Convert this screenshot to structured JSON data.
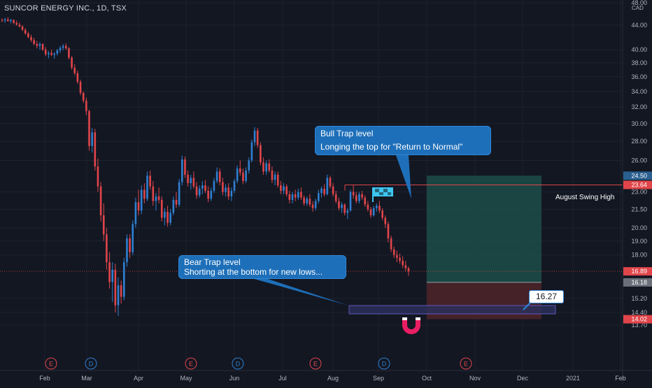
{
  "header": {
    "title": "SUNCOR ENERGY INC., 1D, TSX",
    "currency": "CAD"
  },
  "colors": {
    "background": "#131722",
    "up": "#2f7fd1",
    "down": "#e0454a",
    "grid": "#1e222d",
    "axis_text": "#b2b5be",
    "callout": "#1e6fb9",
    "profit_zone": "#1d4d49",
    "loss_zone": "#4a2329",
    "pink": "#e91e63",
    "flag": "#3dc6f0"
  },
  "annotations": {
    "bull_trap_title": "Bull Trap level",
    "bull_trap_text": "Longing the top for \"Return to Normal\"",
    "bear_trap_title": "Bear Trap level",
    "bear_trap_text": "Shorting at the bottom for new lows...",
    "swing_label": "August Swing High",
    "price_note": "16.27",
    "flag_icon": "flag-icon",
    "magnet_icon": "magnet-icon"
  },
  "chart_data": {
    "type": "candlestick",
    "title": "SUNCOR ENERGY INC., 1D, TSX",
    "x_labels": [
      "Feb",
      "Mar",
      "Apr",
      "May",
      "Jun",
      "Jul",
      "Aug",
      "Sep",
      "Oct",
      "Nov",
      "Dec",
      "2021",
      "Feb"
    ],
    "y_ticks": [
      13.7,
      14.4,
      15.2,
      18.0,
      19.0,
      20.0,
      21.5,
      23.0,
      26.0,
      28.0,
      30.0,
      32.0,
      34.0,
      36.0,
      38.0,
      40.0,
      44.0,
      48.0
    ],
    "y_tick_labels": [
      "13.70",
      "14.40",
      "15.20",
      "18.00",
      "19.00",
      "20.00",
      "21.50",
      "23.00",
      "26.00",
      "28.00",
      "30.00",
      "32.00",
      "34.00",
      "36.00",
      "38.00",
      "40.00",
      "44.00",
      "48.00"
    ],
    "y_scale": "log",
    "ylim": [
      13.5,
      48.0
    ],
    "price_markers": [
      {
        "label": "24.50",
        "value": 24.5,
        "color": "#2a5f8f"
      },
      {
        "label": "23.64",
        "value": 23.64,
        "color": "#e0454a"
      },
      {
        "label": "16.89",
        "value": 16.89,
        "color": "#e0454a"
      },
      {
        "label": "16.18",
        "value": 16.18,
        "color": "#6b6f7a"
      },
      {
        "label": "14.02",
        "value": 14.02,
        "color": "#e0454a"
      }
    ],
    "events": [
      {
        "type": "E",
        "x_day": 62
      },
      {
        "type": "D",
        "x_day": 88
      },
      {
        "type": "E",
        "x_day": 188
      },
      {
        "type": "D",
        "x_day": 216
      },
      {
        "type": "E",
        "x_day": 293
      },
      {
        "type": "D",
        "x_day": 339
      },
      {
        "type": "E",
        "x_day": 425
      }
    ],
    "swing_high": 23.64,
    "long_position": {
      "entry": 16.18,
      "target": 24.5,
      "stop": 14.02
    },
    "candles": [
      [
        44.9,
        45.2,
        44.5,
        44.8
      ],
      [
        44.8,
        45.3,
        44.4,
        45.0
      ],
      [
        45.0,
        45.4,
        44.6,
        44.7
      ],
      [
        44.7,
        45.1,
        44.3,
        44.9
      ],
      [
        44.9,
        45.0,
        44.2,
        44.4
      ],
      [
        44.4,
        44.8,
        43.9,
        44.1
      ],
      [
        44.1,
        44.5,
        43.6,
        43.8
      ],
      [
        43.8,
        44.0,
        43.0,
        43.2
      ],
      [
        43.2,
        43.5,
        42.4,
        42.6
      ],
      [
        42.6,
        42.9,
        41.8,
        42.0
      ],
      [
        42.0,
        42.4,
        41.2,
        41.5
      ],
      [
        41.5,
        41.9,
        40.7,
        40.9
      ],
      [
        40.9,
        41.4,
        40.2,
        40.6
      ],
      [
        40.6,
        41.2,
        40.0,
        40.9
      ],
      [
        40.9,
        41.0,
        39.8,
        40.0
      ],
      [
        40.0,
        40.4,
        39.0,
        39.3
      ],
      [
        39.3,
        39.8,
        38.7,
        39.5
      ],
      [
        39.5,
        40.0,
        39.0,
        39.2
      ],
      [
        39.2,
        39.6,
        38.6,
        39.4
      ],
      [
        39.4,
        40.1,
        39.1,
        39.9
      ],
      [
        39.9,
        40.6,
        39.5,
        40.3
      ],
      [
        40.3,
        40.9,
        39.9,
        40.6
      ],
      [
        40.6,
        41.0,
        40.0,
        40.2
      ],
      [
        40.2,
        40.4,
        38.5,
        38.8
      ],
      [
        38.8,
        39.0,
        37.0,
        37.3
      ],
      [
        37.3,
        37.8,
        36.2,
        36.5
      ],
      [
        36.5,
        36.9,
        35.0,
        35.3
      ],
      [
        35.3,
        35.6,
        33.5,
        33.8
      ],
      [
        33.8,
        34.0,
        32.5,
        32.8
      ],
      [
        32.8,
        33.2,
        31.0,
        31.5
      ],
      [
        31.5,
        31.7,
        27.0,
        27.5
      ],
      [
        27.5,
        29.5,
        26.8,
        29.0
      ],
      [
        29.0,
        29.4,
        25.0,
        25.4
      ],
      [
        25.4,
        26.2,
        23.0,
        23.5
      ],
      [
        23.5,
        23.9,
        20.5,
        21.0
      ],
      [
        21.0,
        22.0,
        19.0,
        19.5
      ],
      [
        19.5,
        20.0,
        17.0,
        17.5
      ],
      [
        17.5,
        18.2,
        15.8,
        16.2
      ],
      [
        16.2,
        17.5,
        15.0,
        17.0
      ],
      [
        17.0,
        17.4,
        14.4,
        14.8
      ],
      [
        14.8,
        16.5,
        14.2,
        16.0
      ],
      [
        16.0,
        16.3,
        14.9,
        15.3
      ],
      [
        15.3,
        17.8,
        15.1,
        17.5
      ],
      [
        17.5,
        19.5,
        17.2,
        19.2
      ],
      [
        19.2,
        19.5,
        17.8,
        18.2
      ],
      [
        18.2,
        20.6,
        18.0,
        20.3
      ],
      [
        20.3,
        22.5,
        20.0,
        22.1
      ],
      [
        22.1,
        23.2,
        21.0,
        21.4
      ],
      [
        21.4,
        23.6,
        21.1,
        23.2
      ],
      [
        23.2,
        23.8,
        22.0,
        22.4
      ],
      [
        22.4,
        24.9,
        22.2,
        24.5
      ],
      [
        24.5,
        25.0,
        23.2,
        23.5
      ],
      [
        23.5,
        24.0,
        21.8,
        22.2
      ],
      [
        22.2,
        22.9,
        21.4,
        22.6
      ],
      [
        22.6,
        23.4,
        22.0,
        22.3
      ],
      [
        22.3,
        22.6,
        20.5,
        20.8
      ],
      [
        20.8,
        21.6,
        20.2,
        21.3
      ],
      [
        21.3,
        21.8,
        20.1,
        20.4
      ],
      [
        20.4,
        21.5,
        20.2,
        21.2
      ],
      [
        21.2,
        22.6,
        21.0,
        22.3
      ],
      [
        22.3,
        23.0,
        21.6,
        21.9
      ],
      [
        21.9,
        24.2,
        21.7,
        23.9
      ],
      [
        23.9,
        26.5,
        23.6,
        26.1
      ],
      [
        26.1,
        26.4,
        24.3,
        24.6
      ],
      [
        24.6,
        25.0,
        23.5,
        23.8
      ],
      [
        23.8,
        24.6,
        23.2,
        24.3
      ],
      [
        24.3,
        24.9,
        23.3,
        23.5
      ],
      [
        23.5,
        23.9,
        22.4,
        22.7
      ],
      [
        22.7,
        23.6,
        22.5,
        23.3
      ],
      [
        23.3,
        24.0,
        22.8,
        23.6
      ],
      [
        23.6,
        24.1,
        22.9,
        23.1
      ],
      [
        23.1,
        23.5,
        22.1,
        22.4
      ],
      [
        22.4,
        23.4,
        22.2,
        23.1
      ],
      [
        23.1,
        24.3,
        22.9,
        24.0
      ],
      [
        24.0,
        25.3,
        23.8,
        24.9
      ],
      [
        24.9,
        25.2,
        23.6,
        23.9
      ],
      [
        23.9,
        24.3,
        22.7,
        23.0
      ],
      [
        23.0,
        23.7,
        22.6,
        23.4
      ],
      [
        23.4,
        23.8,
        22.3,
        22.6
      ],
      [
        22.6,
        23.4,
        22.2,
        23.1
      ],
      [
        23.1,
        24.2,
        22.9,
        24.0
      ],
      [
        24.0,
        25.5,
        23.8,
        25.2
      ],
      [
        25.2,
        26.0,
        24.5,
        24.8
      ],
      [
        24.8,
        25.2,
        23.7,
        24.0
      ],
      [
        24.0,
        25.3,
        23.8,
        25.0
      ],
      [
        25.0,
        26.3,
        24.7,
        26.0
      ],
      [
        26.0,
        28.2,
        25.8,
        27.9
      ],
      [
        27.9,
        29.6,
        27.5,
        29.2
      ],
      [
        29.2,
        29.5,
        27.3,
        27.6
      ],
      [
        27.6,
        27.9,
        25.5,
        25.8
      ],
      [
        25.8,
        26.3,
        24.6,
        24.9
      ],
      [
        24.9,
        26.0,
        24.6,
        25.7
      ],
      [
        25.7,
        26.1,
        24.8,
        25.0
      ],
      [
        25.0,
        25.4,
        23.8,
        24.1
      ],
      [
        24.1,
        24.9,
        23.6,
        24.6
      ],
      [
        24.6,
        24.9,
        23.4,
        23.6
      ],
      [
        23.6,
        24.0,
        22.8,
        23.1
      ],
      [
        23.1,
        23.8,
        22.8,
        23.5
      ],
      [
        23.5,
        23.7,
        22.6,
        22.8
      ],
      [
        22.8,
        23.1,
        22.0,
        22.3
      ],
      [
        22.3,
        23.0,
        22.0,
        22.8
      ],
      [
        22.8,
        23.2,
        22.2,
        22.5
      ],
      [
        22.5,
        23.3,
        22.3,
        23.0
      ],
      [
        23.0,
        23.4,
        22.3,
        22.5
      ],
      [
        22.5,
        22.7,
        21.8,
        22.0
      ],
      [
        22.0,
        22.6,
        21.8,
        22.4
      ],
      [
        22.4,
        22.8,
        21.7,
        21.9
      ],
      [
        21.9,
        22.2,
        21.3,
        21.6
      ],
      [
        21.6,
        22.4,
        21.4,
        22.2
      ],
      [
        22.2,
        23.2,
        22.0,
        22.9
      ],
      [
        22.9,
        23.5,
        22.5,
        23.3
      ],
      [
        23.3,
        23.7,
        22.6,
        22.8
      ],
      [
        22.8,
        24.6,
        22.7,
        24.3
      ],
      [
        24.3,
        24.5,
        23.3,
        23.5
      ],
      [
        23.5,
        23.8,
        22.6,
        22.8
      ],
      [
        22.8,
        23.1,
        22.0,
        22.2
      ],
      [
        22.2,
        22.5,
        21.4,
        21.6
      ],
      [
        21.6,
        22.1,
        21.2,
        21.9
      ],
      [
        21.9,
        22.0,
        21.0,
        21.2
      ],
      [
        21.2,
        21.6,
        20.7,
        21.4
      ],
      [
        21.4,
        23.2,
        21.3,
        23.0
      ],
      [
        23.0,
        23.6,
        22.4,
        22.7
      ],
      [
        22.7,
        23.0,
        22.0,
        22.2
      ],
      [
        22.2,
        23.0,
        22.0,
        22.8
      ],
      [
        22.8,
        23.1,
        22.3,
        22.5
      ],
      [
        22.5,
        22.7,
        21.7,
        21.9
      ],
      [
        21.9,
        22.2,
        21.3,
        21.5
      ],
      [
        21.5,
        21.7,
        20.8,
        21.0
      ],
      [
        21.0,
        21.8,
        20.9,
        21.6
      ],
      [
        21.6,
        22.0,
        21.3,
        21.8
      ],
      [
        21.8,
        22.2,
        21.2,
        21.4
      ],
      [
        21.4,
        21.6,
        20.6,
        20.8
      ],
      [
        20.8,
        21.0,
        20.0,
        20.3
      ],
      [
        20.3,
        20.5,
        18.9,
        19.2
      ],
      [
        19.2,
        19.4,
        18.2,
        18.4
      ],
      [
        18.4,
        18.6,
        17.8,
        18.0
      ],
      [
        18.0,
        18.3,
        17.5,
        17.8
      ],
      [
        17.8,
        18.1,
        17.4,
        17.6
      ],
      [
        17.6,
        17.9,
        17.1,
        17.3
      ],
      [
        17.3,
        17.6,
        16.9,
        17.1
      ],
      [
        17.1,
        17.2,
        16.6,
        16.89
      ]
    ]
  }
}
